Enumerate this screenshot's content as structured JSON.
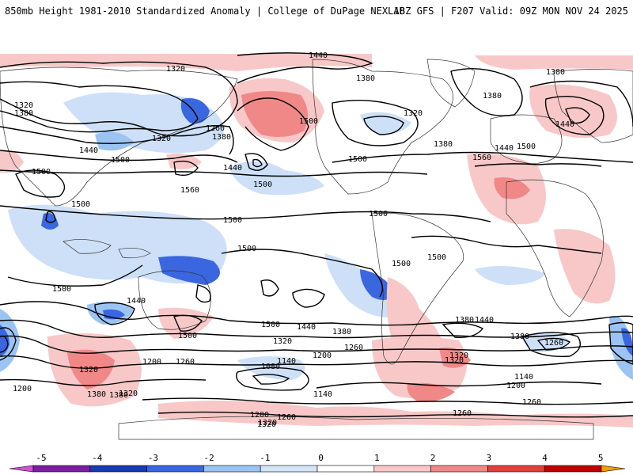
{
  "header": {
    "left": "850mb Height 1981-2010 Standardized Anomaly | College of DuPage NEXLAB",
    "right": "18Z GFS | F207 Valid: 09Z MON NOV 24 2025"
  },
  "contour_labels": [
    "1320",
    "1380",
    "1320",
    "1380",
    "1440",
    "1320",
    "1260",
    "1380",
    "1500",
    "1560",
    "1440",
    "1500",
    "1500",
    "1440",
    "1380",
    "1500",
    "1320",
    "1380",
    "1440",
    "1500",
    "1560",
    "1440",
    "1380",
    "1500",
    "1500",
    "1500",
    "1500",
    "1500",
    "1500",
    "1500",
    "1500",
    "1440",
    "1500",
    "1380",
    "1440",
    "1500",
    "1440",
    "1380",
    "1320",
    "1260",
    "1200",
    "1140",
    "1080",
    "1140",
    "1200",
    "1260",
    "1320",
    "1380",
    "1260",
    "1200",
    "1260",
    "1320",
    "1260",
    "1140",
    "1200",
    "1260",
    "1320",
    "1380",
    "1320",
    "1200",
    "1320",
    "1380",
    "1320"
  ],
  "colorbar": {
    "ticks": [
      "-5",
      "-4",
      "-3",
      "-2",
      "-1",
      "0",
      "1",
      "2",
      "3",
      "4",
      "5"
    ],
    "colors": [
      "#d64fd6",
      "#7b1fa2",
      "#1a3bb0",
      "#3a66e0",
      "#9cc4f2",
      "#d4e5fa",
      "#ffffff",
      "#f8c8c8",
      "#f08888",
      "#e04040",
      "#c00000",
      "#f2a000"
    ]
  }
}
